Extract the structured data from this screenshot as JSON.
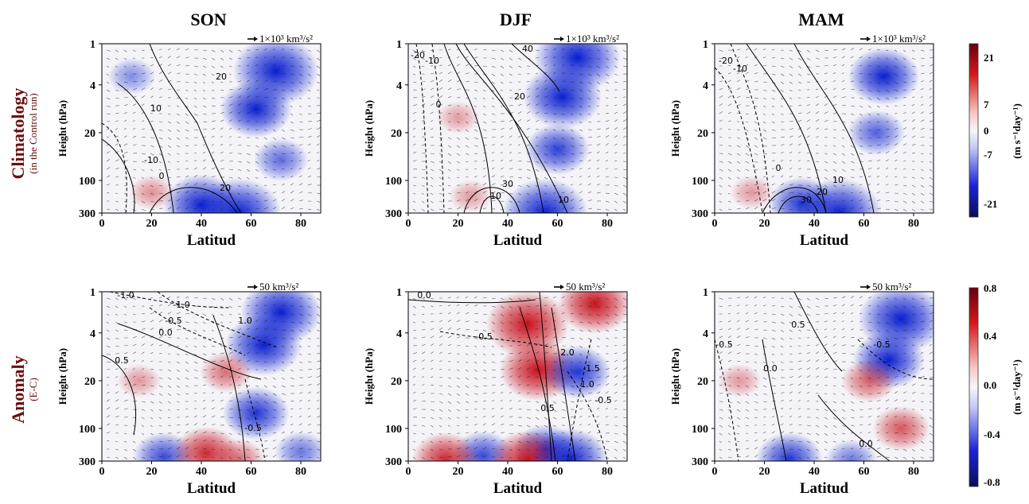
{
  "seasons": [
    "SON",
    "DJF",
    "MAM"
  ],
  "rows": [
    {
      "title": "Climatology",
      "subtitle": "(in the Control run)",
      "arrow_scale": "1×10³ km³/s²"
    },
    {
      "title": "Anomaly",
      "subtitle": "(E-C)",
      "arrow_scale": "50 km³/s²"
    }
  ],
  "xlabel": "Latitud",
  "ylabel": "Height (hPa)",
  "xticks": [
    "0",
    "20",
    "40",
    "60",
    "80"
  ],
  "yticks": [
    "1",
    "4",
    "20",
    "100",
    "300"
  ],
  "colorbars": [
    {
      "label": "(m s⁻¹day⁻¹)",
      "ticks": [
        "21",
        "7",
        "0",
        "-7",
        "-21"
      ]
    },
    {
      "label": "(m s⁻¹day⁻¹)",
      "ticks": [
        "0.8",
        "0.4",
        "0.0",
        "-0.4",
        "-0.8"
      ]
    }
  ],
  "colors": {
    "positive": "#c8101c",
    "negative": "#0a1ed0",
    "neutral": "#f4f4f8"
  },
  "chart_data": [
    {
      "type": "heatmap",
      "title": "SON",
      "row": "Climatology",
      "xlim": [
        0,
        88
      ],
      "ylim": [
        300,
        1
      ],
      "blobs": [
        [
          70,
          2.5,
          -1
        ],
        [
          62,
          9,
          -0.7
        ],
        [
          72,
          50,
          -0.35
        ],
        [
          55,
          300,
          -1
        ],
        [
          40,
          230,
          -0.8
        ],
        [
          20,
          150,
          0.15
        ],
        [
          12,
          3,
          -0.2
        ]
      ],
      "contours": [
        {
          "label": "20",
          "value": 20,
          "dashed": false
        },
        {
          "label": "10",
          "value": 10,
          "dashed": false
        },
        {
          "label": "-10",
          "value": -10,
          "dashed": true
        },
        {
          "label": "0",
          "value": 0,
          "dashed": false
        },
        {
          "label": "20",
          "value": 20,
          "dashed": false
        }
      ]
    },
    {
      "type": "heatmap",
      "title": "DJF",
      "row": "Climatology",
      "xlim": [
        0,
        88
      ],
      "ylim": [
        300,
        1
      ],
      "blobs": [
        [
          68,
          1.6,
          -1
        ],
        [
          62,
          6,
          -0.85
        ],
        [
          60,
          35,
          -0.55
        ],
        [
          55,
          300,
          -1
        ],
        [
          25,
          170,
          0.1
        ],
        [
          20,
          12,
          0.1
        ]
      ],
      "contours": [
        {
          "label": "-20",
          "value": -20,
          "dashed": true
        },
        {
          "label": "-10",
          "value": -10,
          "dashed": true
        },
        {
          "label": "0",
          "value": 0,
          "dashed": false
        },
        {
          "label": "10",
          "value": 10,
          "dashed": false
        },
        {
          "label": "20",
          "value": 20,
          "dashed": false
        },
        {
          "label": "40",
          "value": 40,
          "dashed": false
        },
        {
          "label": "30",
          "value": 30,
          "dashed": false
        },
        {
          "label": "10",
          "value": 10,
          "dashed": false
        }
      ]
    },
    {
      "type": "heatmap",
      "title": "MAM",
      "row": "Climatology",
      "xlim": [
        0,
        88
      ],
      "ylim": [
        300,
        1
      ],
      "blobs": [
        [
          68,
          3,
          -0.7
        ],
        [
          65,
          20,
          -0.4
        ],
        [
          50,
          300,
          -1
        ],
        [
          35,
          220,
          -0.6
        ],
        [
          15,
          150,
          0.12
        ]
      ],
      "contours": [
        {
          "label": "-20",
          "value": -20,
          "dashed": true
        },
        {
          "label": "-10",
          "value": -10,
          "dashed": true
        },
        {
          "label": "0",
          "value": 0,
          "dashed": false
        },
        {
          "label": "10",
          "value": 10,
          "dashed": false
        },
        {
          "label": "20",
          "value": 20,
          "dashed": false
        },
        {
          "label": "30",
          "value": 30,
          "dashed": false
        }
      ]
    },
    {
      "type": "heatmap",
      "title": "SON",
      "row": "Anomaly",
      "xlim": [
        0,
        88
      ],
      "ylim": [
        300,
        1
      ],
      "blobs": [
        [
          72,
          2,
          -0.9
        ],
        [
          65,
          6,
          -0.8
        ],
        [
          50,
          15,
          0.3
        ],
        [
          62,
          60,
          -0.6
        ],
        [
          25,
          260,
          -0.5
        ],
        [
          42,
          230,
          0.6
        ],
        [
          55,
          280,
          0.3
        ],
        [
          80,
          220,
          -0.3
        ],
        [
          15,
          20,
          0.12
        ]
      ],
      "contours": [
        {
          "label": "-1.0",
          "value": -1,
          "dashed": true
        },
        {
          "label": "-1.0",
          "value": -1,
          "dashed": true
        },
        {
          "label": "-0.5",
          "value": -0.5,
          "dashed": true
        },
        {
          "label": "0.0",
          "value": 0,
          "dashed": false
        },
        {
          "label": "0.5",
          "value": 0.5,
          "dashed": false
        },
        {
          "label": "1.0",
          "value": 1,
          "dashed": false
        },
        {
          "label": "-0.5",
          "value": -0.5,
          "dashed": true
        }
      ]
    },
    {
      "type": "heatmap",
      "title": "DJF",
      "row": "Anomaly",
      "xlim": [
        0,
        88
      ],
      "ylim": [
        300,
        1
      ],
      "blobs": [
        [
          48,
          3,
          0.95
        ],
        [
          52,
          14,
          0.8
        ],
        [
          75,
          1.5,
          0.75
        ],
        [
          68,
          15,
          -0.6
        ],
        [
          30,
          250,
          -0.5
        ],
        [
          55,
          200,
          -0.5
        ],
        [
          15,
          280,
          0.6
        ],
        [
          48,
          300,
          0.8
        ],
        [
          65,
          280,
          -0.8
        ]
      ],
      "contours": [
        {
          "label": "0.0",
          "value": 0,
          "dashed": false
        },
        {
          "label": "-0.5",
          "value": -0.5,
          "dashed": true
        },
        {
          "label": "2.0",
          "value": 2,
          "dashed": false
        },
        {
          "label": "-1.5",
          "value": -1.5,
          "dashed": true
        },
        {
          "label": "1.0",
          "value": 1,
          "dashed": false
        },
        {
          "label": "0.5",
          "value": 0.5,
          "dashed": false
        },
        {
          "label": "-0.5",
          "value": -0.5,
          "dashed": true
        }
      ]
    },
    {
      "type": "heatmap",
      "title": "MAM",
      "row": "Anomaly",
      "xlim": [
        0,
        88
      ],
      "ylim": [
        300,
        1
      ],
      "blobs": [
        [
          75,
          2.5,
          -1
        ],
        [
          70,
          10,
          -0.7
        ],
        [
          62,
          20,
          0.35
        ],
        [
          75,
          100,
          0.4
        ],
        [
          30,
          280,
          -0.6
        ],
        [
          55,
          290,
          -0.3
        ],
        [
          10,
          20,
          0.12
        ]
      ],
      "contours": [
        {
          "label": "-0.5",
          "value": -0.5,
          "dashed": true
        },
        {
          "label": "0.0",
          "value": 0,
          "dashed": false
        },
        {
          "label": "0.5",
          "value": 0.5,
          "dashed": false
        },
        {
          "label": "-0.5",
          "value": -0.5,
          "dashed": true
        },
        {
          "label": "0.0",
          "value": 0,
          "dashed": false
        }
      ]
    }
  ]
}
